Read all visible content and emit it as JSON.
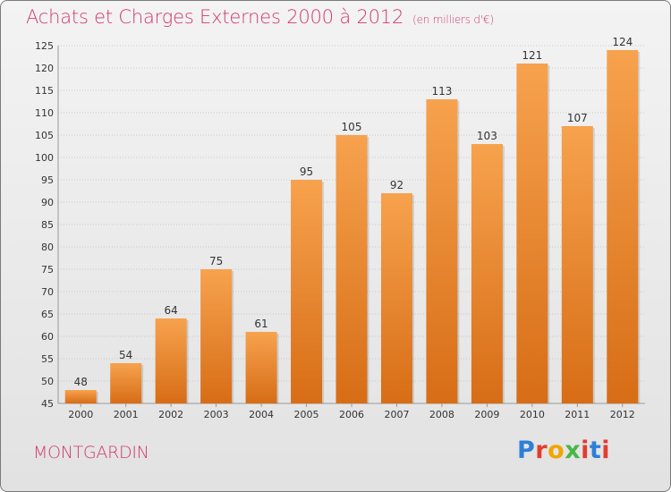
{
  "title": "Achats et Charges Externes 2000 à 2012",
  "unit": "(en milliers d'€)",
  "commune": "MONTGARDIN",
  "logo": {
    "text": "Proxiti",
    "letter_colors": [
      "#2e7fd6",
      "#e33d2e",
      "#f2a400",
      "#49b649",
      "#e33d2e",
      "#2e7fd6",
      "#e33d2e"
    ]
  },
  "colors": {
    "title": "#d03a6e",
    "bar_light": "#f7a24e",
    "bar_dark": "#d76d16",
    "grid": "#c9c9c9"
  },
  "chart_data": {
    "type": "bar",
    "title": "Achats et Charges Externes 2000 à 2012",
    "xlabel": "",
    "ylabel": "",
    "categories": [
      "2000",
      "2001",
      "2002",
      "2003",
      "2004",
      "2005",
      "2006",
      "2007",
      "2008",
      "2009",
      "2010",
      "2011",
      "2012"
    ],
    "values": [
      48,
      54,
      64,
      75,
      61,
      95,
      105,
      92,
      113,
      103,
      121,
      107,
      124
    ],
    "ylim": [
      45,
      125
    ],
    "yticks": [
      45,
      50,
      55,
      60,
      65,
      70,
      75,
      80,
      85,
      90,
      95,
      100,
      105,
      110,
      115,
      120,
      125
    ],
    "grid": true,
    "data_labels": true
  }
}
